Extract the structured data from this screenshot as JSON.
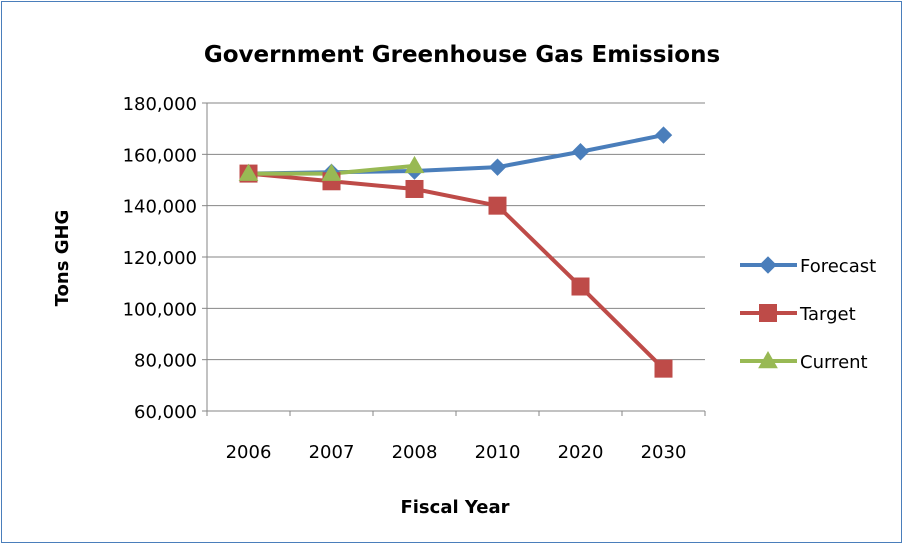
{
  "chart_data": {
    "type": "line",
    "title": "Government Greenhouse Gas Emissions",
    "xlabel": "Fiscal Year",
    "ylabel": "Tons GHG",
    "categories": [
      "2006",
      "2007",
      "2008",
      "2010",
      "2020",
      "2030"
    ],
    "ylim": [
      60000,
      180000
    ],
    "yticks": [
      60000,
      80000,
      100000,
      120000,
      140000,
      160000,
      180000
    ],
    "ytick_labels": [
      "60,000",
      "80,000",
      "100,000",
      "120,000",
      "140,000",
      "160,000",
      "180,000"
    ],
    "grid": true,
    "legend_position": "right",
    "series": [
      {
        "name": "Forecast",
        "color": "#4a7ebb",
        "marker": "diamond",
        "values": [
          152500,
          153000,
          153500,
          155000,
          161000,
          167500
        ]
      },
      {
        "name": "Target",
        "color": "#be4b48",
        "marker": "square",
        "values": [
          152500,
          149500,
          146500,
          140000,
          108500,
          76500
        ]
      },
      {
        "name": "Current",
        "color": "#98b954",
        "marker": "triangle",
        "values": [
          152500,
          152500,
          155500,
          null,
          null,
          null
        ]
      }
    ]
  }
}
